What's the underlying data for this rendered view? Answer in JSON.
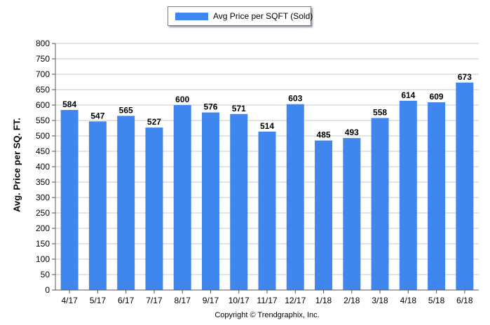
{
  "colors": {
    "bar": "#3f86ee",
    "grid": "#c8c8c8",
    "axis": "#555555"
  },
  "legend": {
    "label": "Avg Price per SQFT (Sold)"
  },
  "footer": {
    "copyright": "Copyright © Trendgraphix, Inc."
  },
  "chart_data": {
    "type": "bar",
    "ylabel": "Avg. Price per SQ. FT.",
    "xlabel": "",
    "ylim": [
      0,
      800
    ],
    "ytick_step": 50,
    "grid": true,
    "legend_position": "top-center",
    "categories": [
      "4/17",
      "5/17",
      "6/17",
      "7/17",
      "8/17",
      "9/17",
      "10/17",
      "11/17",
      "12/17",
      "1/18",
      "2/18",
      "3/18",
      "4/18",
      "5/18",
      "6/18"
    ],
    "series": [
      {
        "name": "Avg Price per SQFT (Sold)",
        "values": [
          584,
          547,
          565,
          527,
          600,
          576,
          571,
          514,
          603,
          485,
          493,
          558,
          614,
          609,
          673
        ]
      }
    ]
  }
}
